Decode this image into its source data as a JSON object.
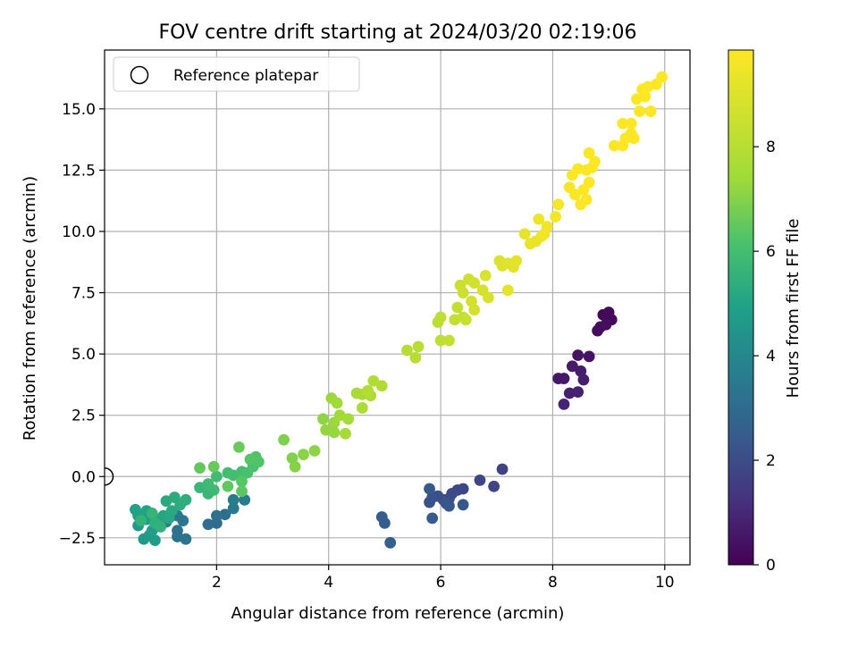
{
  "chart_data": {
    "type": "scatter",
    "title": "FOV centre drift starting at 2024/03/20 02:19:06",
    "xlabel": "Angular distance from reference (arcmin)",
    "ylabel": "Rotation from reference (arcmin)",
    "xlim": [
      0,
      10.45
    ],
    "ylim": [
      -3.6,
      17.4
    ],
    "x_ticks": [
      {
        "value": 2,
        "label": "2"
      },
      {
        "value": 4,
        "label": "4"
      },
      {
        "value": 6,
        "label": "6"
      },
      {
        "value": 8,
        "label": "8"
      },
      {
        "value": 10,
        "label": "10"
      }
    ],
    "y_ticks": [
      {
        "value": -2.5,
        "label": "−2.5"
      },
      {
        "value": 0,
        "label": "0.0"
      },
      {
        "value": 2.5,
        "label": "2.5"
      },
      {
        "value": 5,
        "label": "5.0"
      },
      {
        "value": 7.5,
        "label": "7.5"
      },
      {
        "value": 10,
        "label": "10.0"
      },
      {
        "value": 12.5,
        "label": "12.5"
      },
      {
        "value": 15,
        "label": "15.0"
      }
    ],
    "grid": true,
    "legend": {
      "placement": "top-left",
      "entries": [
        {
          "label": "Reference platepar",
          "marker": "hollow-circle"
        }
      ]
    },
    "reference_point": [
      0,
      0
    ],
    "colorbar": {
      "label": "Hours from first FF file",
      "colormap": "viridis",
      "range": [
        0,
        9.85
      ],
      "ticks": [
        {
          "value": 0,
          "label": "0"
        },
        {
          "value": 2,
          "label": "2"
        },
        {
          "value": 4,
          "label": "4"
        },
        {
          "value": 6,
          "label": "6"
        },
        {
          "value": 8,
          "label": "8"
        }
      ]
    },
    "columns": [
      "x",
      "y",
      "hours"
    ],
    "points": [
      [
        8.9,
        6.6,
        0.1
      ],
      [
        9.05,
        6.4,
        0.15
      ],
      [
        9.0,
        6.7,
        0.2
      ],
      [
        8.85,
        6.1,
        0.25
      ],
      [
        8.8,
        5.95,
        0.3
      ],
      [
        8.95,
        6.2,
        0.35
      ],
      [
        8.65,
        4.9,
        0.45
      ],
      [
        8.45,
        4.95,
        0.5
      ],
      [
        8.1,
        4.0,
        0.55
      ],
      [
        8.2,
        4.0,
        0.6
      ],
      [
        8.35,
        4.5,
        0.65
      ],
      [
        8.5,
        4.3,
        0.7
      ],
      [
        8.55,
        3.95,
        0.75
      ],
      [
        8.3,
        3.4,
        0.8
      ],
      [
        8.45,
        3.45,
        0.85
      ],
      [
        8.2,
        2.95,
        0.9
      ],
      [
        7.1,
        0.3,
        1.7
      ],
      [
        6.95,
        -0.4,
        1.75
      ],
      [
        6.7,
        -0.15,
        1.8
      ],
      [
        6.4,
        -0.5,
        1.85
      ],
      [
        6.3,
        -0.55,
        1.9
      ],
      [
        6.2,
        -0.7,
        1.95
      ],
      [
        6.15,
        -0.9,
        2.0
      ],
      [
        6.05,
        -0.95,
        2.05
      ],
      [
        5.95,
        -0.8,
        2.1
      ],
      [
        5.85,
        -0.85,
        2.15
      ],
      [
        5.8,
        -1.05,
        2.2
      ],
      [
        6.1,
        -1.1,
        2.25
      ],
      [
        6.15,
        -1.2,
        2.3
      ],
      [
        6.4,
        -1.15,
        2.35
      ],
      [
        5.8,
        -0.5,
        2.4
      ],
      [
        5.85,
        -1.7,
        2.45
      ],
      [
        4.95,
        -1.65,
        2.5
      ],
      [
        5.0,
        -1.9,
        2.55
      ],
      [
        5.1,
        -2.7,
        2.6
      ],
      [
        2.0,
        -1.9,
        3.0
      ],
      [
        2.15,
        -1.55,
        3.05
      ],
      [
        1.85,
        -1.95,
        3.1
      ],
      [
        2.0,
        -1.6,
        3.15
      ],
      [
        1.3,
        -2.2,
        3.2
      ],
      [
        1.3,
        -2.45,
        3.25
      ],
      [
        1.45,
        -2.55,
        3.3
      ],
      [
        1.4,
        -1.8,
        3.35
      ],
      [
        1.3,
        -1.6,
        3.4
      ],
      [
        1.1,
        -1.85,
        3.45
      ],
      [
        2.3,
        -1.3,
        3.5
      ],
      [
        2.5,
        -0.95,
        3.55
      ],
      [
        2.3,
        -0.95,
        3.6
      ],
      [
        0.6,
        -2.0,
        4.6
      ],
      [
        0.7,
        -2.55,
        4.65
      ],
      [
        0.8,
        -2.4,
        4.7
      ],
      [
        0.9,
        -2.6,
        4.75
      ],
      [
        0.85,
        -2.2,
        4.8
      ],
      [
        0.75,
        -1.75,
        4.85
      ],
      [
        0.6,
        -1.6,
        4.9
      ],
      [
        0.55,
        -1.35,
        4.95
      ],
      [
        0.75,
        -1.4,
        5.0
      ],
      [
        0.95,
        -1.75,
        5.05
      ],
      [
        1.05,
        -1.6,
        5.1
      ],
      [
        1.15,
        -1.7,
        5.15
      ],
      [
        1.2,
        -1.4,
        5.2
      ],
      [
        1.1,
        -1.0,
        5.25
      ],
      [
        1.25,
        -0.85,
        5.3
      ],
      [
        1.35,
        -1.15,
        5.35
      ],
      [
        1.45,
        -0.95,
        5.4
      ],
      [
        0.9,
        -1.9,
        5.45
      ],
      [
        1.0,
        -2.05,
        5.5
      ],
      [
        0.65,
        -1.8,
        5.55
      ],
      [
        0.85,
        -1.5,
        5.6
      ],
      [
        1.7,
        -0.45,
        5.7
      ],
      [
        1.85,
        -0.7,
        5.75
      ],
      [
        1.95,
        -0.55,
        5.8
      ],
      [
        1.85,
        -0.3,
        5.85
      ],
      [
        2.0,
        0.0,
        5.9
      ],
      [
        2.2,
        0.15,
        5.95
      ],
      [
        2.3,
        0.05,
        6.0
      ],
      [
        2.45,
        0.2,
        6.05
      ],
      [
        2.55,
        0.15,
        6.1
      ],
      [
        2.65,
        0.4,
        6.15
      ],
      [
        2.7,
        0.8,
        6.2
      ],
      [
        2.75,
        0.6,
        6.25
      ],
      [
        2.6,
        0.7,
        6.3
      ],
      [
        2.45,
        -0.2,
        6.35
      ],
      [
        2.45,
        -0.6,
        6.4
      ],
      [
        2.2,
        -0.4,
        6.45
      ],
      [
        1.7,
        0.35,
        6.5
      ],
      [
        1.95,
        0.4,
        6.55
      ],
      [
        2.4,
        1.2,
        6.6
      ],
      [
        3.2,
        1.5,
        6.9
      ],
      [
        3.35,
        0.75,
        6.95
      ],
      [
        3.4,
        0.4,
        7.0
      ],
      [
        3.55,
        0.9,
        7.05
      ],
      [
        3.75,
        1.05,
        7.1
      ],
      [
        3.9,
        2.35,
        7.15
      ],
      [
        3.95,
        1.9,
        7.2
      ],
      [
        4.1,
        1.8,
        7.25
      ],
      [
        4.1,
        2.2,
        7.3
      ],
      [
        4.05,
        3.2,
        7.35
      ],
      [
        4.15,
        3.0,
        7.4
      ],
      [
        4.2,
        2.5,
        7.45
      ],
      [
        4.35,
        2.35,
        7.5
      ],
      [
        4.3,
        1.75,
        7.55
      ],
      [
        4.5,
        3.4,
        7.6
      ],
      [
        4.6,
        3.35,
        7.65
      ],
      [
        4.6,
        2.8,
        7.7
      ],
      [
        4.75,
        3.3,
        7.75
      ],
      [
        4.8,
        3.9,
        7.8
      ],
      [
        4.95,
        3.7,
        7.85
      ],
      [
        4.7,
        3.5,
        7.9
      ],
      [
        5.4,
        5.15,
        7.95
      ],
      [
        5.55,
        4.85,
        8.0
      ],
      [
        5.6,
        5.3,
        8.05
      ],
      [
        5.95,
        6.3,
        8.1
      ],
      [
        6.0,
        6.5,
        8.15
      ],
      [
        6.0,
        5.55,
        8.2
      ],
      [
        6.15,
        5.55,
        8.25
      ],
      [
        6.25,
        6.4,
        8.3
      ],
      [
        6.3,
        6.9,
        8.35
      ],
      [
        6.4,
        6.5,
        8.4
      ],
      [
        6.45,
        6.4,
        8.45
      ],
      [
        6.35,
        7.8,
        8.5
      ],
      [
        6.4,
        7.5,
        8.55
      ],
      [
        6.5,
        8.05,
        8.6
      ],
      [
        6.6,
        7.9,
        8.65
      ],
      [
        6.55,
        7.15,
        8.7
      ],
      [
        6.6,
        6.8,
        8.75
      ],
      [
        6.75,
        7.6,
        8.8
      ],
      [
        6.85,
        7.3,
        8.85
      ],
      [
        6.8,
        8.2,
        8.9
      ],
      [
        7.05,
        8.8,
        8.95
      ],
      [
        7.1,
        8.6,
        9.0
      ],
      [
        7.2,
        8.7,
        9.05
      ],
      [
        7.3,
        8.55,
        9.1
      ],
      [
        7.35,
        8.8,
        9.15
      ],
      [
        7.2,
        7.6,
        9.2
      ],
      [
        7.5,
        9.9,
        9.25
      ],
      [
        7.6,
        9.5,
        9.3
      ],
      [
        7.7,
        9.6,
        9.35
      ],
      [
        7.8,
        9.8,
        9.4
      ],
      [
        7.75,
        10.5,
        9.45
      ],
      [
        7.9,
        10.2,
        9.5
      ],
      [
        7.85,
        9.9,
        9.55
      ],
      [
        8.05,
        10.6,
        9.6
      ],
      [
        8.1,
        11.1,
        9.65
      ],
      [
        8.3,
        11.8,
        9.7
      ],
      [
        8.4,
        11.5,
        9.75
      ],
      [
        8.5,
        11.1,
        9.8
      ],
      [
        8.6,
        11.3,
        9.8
      ],
      [
        8.35,
        12.3,
        9.82
      ],
      [
        8.45,
        12.55,
        9.82
      ],
      [
        8.6,
        12.5,
        9.83
      ],
      [
        8.7,
        12.6,
        9.83
      ],
      [
        8.75,
        12.85,
        9.83
      ],
      [
        8.65,
        13.2,
        9.83
      ],
      [
        8.65,
        12.0,
        9.84
      ],
      [
        8.55,
        11.7,
        9.84
      ],
      [
        9.1,
        13.5,
        9.85
      ],
      [
        9.25,
        13.5,
        9.85
      ],
      [
        9.3,
        13.8,
        9.85
      ],
      [
        9.4,
        14.0,
        9.85
      ],
      [
        9.45,
        13.8,
        9.85
      ],
      [
        9.25,
        14.4,
        9.85
      ],
      [
        9.4,
        14.4,
        9.85
      ],
      [
        9.55,
        14.9,
        9.85
      ],
      [
        9.5,
        15.4,
        9.85
      ],
      [
        9.65,
        15.5,
        9.85
      ],
      [
        9.6,
        15.8,
        9.85
      ],
      [
        9.75,
        14.9,
        9.85
      ],
      [
        9.85,
        16.0,
        9.85
      ],
      [
        9.95,
        16.3,
        9.85
      ],
      [
        9.7,
        15.9,
        9.85
      ]
    ]
  }
}
